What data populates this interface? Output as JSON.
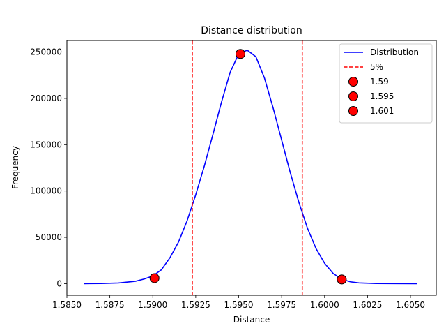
{
  "chart_data": {
    "type": "line",
    "title": "Distance distribution",
    "xlabel": "Distance",
    "ylabel": "Frequency",
    "xlim": [
      1.585,
      1.6065
    ],
    "ylim": [
      -12500,
      262500
    ],
    "x_ticks": [
      1.585,
      1.5875,
      1.59,
      1.5925,
      1.595,
      1.5975,
      1.6,
      1.6025,
      1.605
    ],
    "x_tick_labels": [
      "1.5850",
      "1.5875",
      "1.5900",
      "1.5925",
      "1.5950",
      "1.5975",
      "1.6000",
      "1.6025",
      "1.6050"
    ],
    "y_ticks": [
      0,
      50000,
      100000,
      150000,
      200000,
      250000
    ],
    "y_tick_labels": [
      "0",
      "50000",
      "100000",
      "150000",
      "200000",
      "250000"
    ],
    "grid": false,
    "legend_position": "top-right",
    "series": [
      {
        "name": "Distribution",
        "kind": "line",
        "color": "#0000ff",
        "x": [
          1.586,
          1.587,
          1.588,
          1.589,
          1.5895,
          1.59,
          1.5905,
          1.591,
          1.5915,
          1.592,
          1.5925,
          1.593,
          1.5935,
          1.594,
          1.5945,
          1.595,
          1.5955,
          1.596,
          1.5965,
          1.597,
          1.5975,
          1.598,
          1.5985,
          1.599,
          1.5995,
          1.6,
          1.6005,
          1.601,
          1.6015,
          1.602,
          1.603,
          1.604,
          1.6054
        ],
        "y": [
          0,
          200,
          700,
          2600,
          5000,
          8300,
          15000,
          28000,
          45000,
          68000,
          96000,
          127000,
          161000,
          196000,
          228000,
          248000,
          252000,
          245000,
          222000,
          190000,
          155000,
          120000,
          88000,
          60000,
          38000,
          22000,
          11000,
          4800,
          2000,
          800,
          200,
          50,
          0
        ]
      },
      {
        "name": "5%",
        "kind": "vline",
        "color": "#ff0000",
        "x": [
          1.5923,
          1.5987
        ]
      },
      {
        "name": "1.59",
        "kind": "point",
        "color": "#ff0000",
        "x": [
          1.5901
        ],
        "y": [
          6000
        ]
      },
      {
        "name": "1.595",
        "kind": "point",
        "color": "#ff0000",
        "x": [
          1.5951
        ],
        "y": [
          248000
        ]
      },
      {
        "name": "1.601",
        "kind": "point",
        "color": "#ff0000",
        "x": [
          1.601
        ],
        "y": [
          4500
        ]
      }
    ]
  }
}
